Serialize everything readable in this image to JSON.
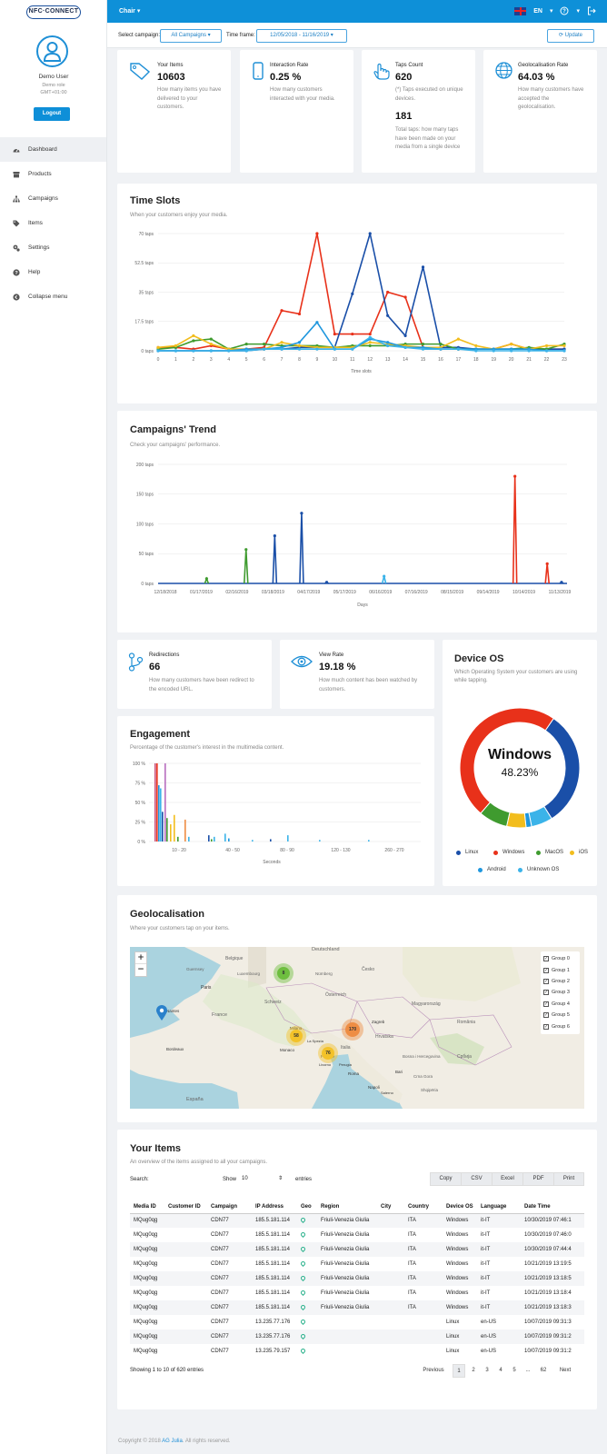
{
  "brand": {
    "logo_text": "NFC·CONNECT"
  },
  "user": {
    "name": "Demo User",
    "role": "Demo role",
    "timezone": "GMT+01:00",
    "logout_label": "Logout"
  },
  "nav": [
    {
      "label": "Dashboard",
      "icon": "dashboard-icon"
    },
    {
      "label": "Products",
      "icon": "box-icon"
    },
    {
      "label": "Campaigns",
      "icon": "sitemap-icon"
    },
    {
      "label": "Items",
      "icon": "tags-icon"
    },
    {
      "label": "Settings",
      "icon": "gears-icon"
    },
    {
      "label": "Help",
      "icon": "question-icon"
    },
    {
      "label": "Collapse menu",
      "icon": "chevron-left-icon"
    }
  ],
  "topbar": {
    "product": "Chair",
    "language": "EN"
  },
  "filters": {
    "campaign_label": "Select campaign:",
    "campaign_value": "All Campaigns",
    "timeframe_label": "Time frame:",
    "timeframe_value": "12/05/2018 - 11/16/2019",
    "update_label": "Update"
  },
  "stats": {
    "items": {
      "title": "Your Items",
      "value": "10603",
      "desc": "How many items you have delivered to your customers."
    },
    "interaction": {
      "title": "Interaction Rate",
      "value": "0.25 %",
      "desc": "How many customers interacted with your media."
    },
    "taps": {
      "title": "Taps Count",
      "value": "620",
      "desc": "(*) Taps executed on unique devices.",
      "value2": "181",
      "desc2": "Total taps: how many taps have been made on your media from a single device"
    },
    "geo": {
      "title": "Geolocalisation Rate",
      "value": "64.03 %",
      "desc": "How many customers have accepted the geolocalisation."
    },
    "redirections": {
      "title": "Redirections",
      "value": "66",
      "desc": "How many customers have been redirect to the encoded URL."
    },
    "viewrate": {
      "title": "View Rate",
      "value": "19.18 %",
      "desc": "How much content has been watched by customers."
    }
  },
  "sections": {
    "timeslots": {
      "title": "Time Slots",
      "subtitle": "When your customers enjoy your media."
    },
    "trend": {
      "title": "Campaigns' Trend",
      "subtitle": "Check your campaigns' performance."
    },
    "engagement": {
      "title": "Engagement",
      "subtitle": "Percentage of the customer's interest in the multimedia content."
    },
    "deviceos": {
      "title": "Device OS",
      "subtitle": "Which Operating System your customers are using while tapping.",
      "center_label": "Windows",
      "center_value": "48.23%"
    },
    "geo": {
      "title": "Geolocalisation",
      "subtitle": "Where your customers tap on your items."
    },
    "items": {
      "title": "Your Items",
      "subtitle": "An overview of the items assigned to all your campaigns."
    }
  },
  "colors": {
    "Linux": "#1a4fa8",
    "Windows": "#e8311a",
    "MacOS": "#3f9b2f",
    "iOS": "#f2bd1d",
    "Android": "#1f97de",
    "Unknown OS": "#3bb3e9",
    "accent": "#0e90d8"
  },
  "chart_data": [
    {
      "type": "line",
      "title": "Time Slots",
      "xlabel": "Time slots",
      "x": [
        0,
        1,
        2,
        3,
        4,
        5,
        6,
        7,
        8,
        9,
        10,
        11,
        12,
        13,
        14,
        15,
        16,
        17,
        18,
        19,
        20,
        21,
        22,
        23
      ],
      "ylim": [
        0,
        70
      ],
      "yticks": [
        "0 taps",
        "17.5 taps",
        "35 taps",
        "52.5 taps",
        "70 taps"
      ],
      "series": [
        {
          "color": "#e8311a",
          "values": [
            2,
            2,
            1,
            3,
            1,
            1,
            2,
            24,
            22,
            70,
            10,
            10,
            10,
            35,
            32,
            2,
            1,
            1,
            1,
            1,
            4,
            1,
            1,
            1
          ]
        },
        {
          "color": "#1a4fa8",
          "values": [
            0,
            0,
            0,
            0,
            0,
            0,
            1,
            1,
            2,
            2,
            2,
            34,
            70,
            21,
            9,
            50,
            2,
            2,
            1,
            1,
            1,
            1,
            1,
            1
          ]
        },
        {
          "color": "#3f9b2f",
          "values": [
            1,
            2,
            6,
            7,
            1,
            4,
            4,
            3,
            3,
            3,
            2,
            3,
            3,
            3,
            4,
            4,
            4,
            1,
            1,
            1,
            1,
            2,
            1,
            4
          ]
        },
        {
          "color": "#f2bd1d",
          "values": [
            2,
            3,
            9,
            4,
            1,
            1,
            1,
            5,
            3,
            2,
            2,
            2,
            5,
            4,
            3,
            2,
            2,
            7,
            3,
            1,
            4,
            1,
            3,
            3
          ]
        },
        {
          "color": "#1f97de",
          "values": [
            0,
            0,
            0,
            0,
            0,
            1,
            1,
            2,
            5,
            17,
            1,
            1,
            7,
            5,
            2,
            2,
            1,
            1,
            1,
            1,
            1,
            1,
            0,
            0
          ]
        },
        {
          "color": "#3bb3e9",
          "values": [
            0,
            0,
            0,
            0,
            0,
            0,
            1,
            1,
            1,
            1,
            1,
            1,
            8,
            3,
            2,
            1,
            1,
            1,
            0,
            0,
            0,
            0,
            0,
            0
          ]
        }
      ]
    },
    {
      "type": "line",
      "title": "Campaigns' Trend",
      "xlabel": "Days",
      "categories": [
        "12/18/2018",
        "01/17/2019",
        "02/16/2019",
        "03/18/2019",
        "04/17/2019",
        "05/17/2019",
        "06/16/2019",
        "07/16/2019",
        "08/15/2019",
        "09/14/2019",
        "10/14/2019",
        "11/13/2019"
      ],
      "ylim": [
        0,
        200
      ],
      "yticks": [
        "0 taps",
        "50 taps",
        "100 taps",
        "150 taps",
        "200 taps"
      ],
      "spikes": [
        {
          "date_index": 1.15,
          "value": 8,
          "color": "#3f9b2f"
        },
        {
          "date_index": 2.25,
          "value": 57,
          "color": "#3f9b2f"
        },
        {
          "date_index": 3.05,
          "value": 80,
          "color": "#1a4fa8"
        },
        {
          "date_index": 3.8,
          "value": 118,
          "color": "#1a4fa8"
        },
        {
          "date_index": 4.5,
          "value": 2,
          "color": "#1a4fa8"
        },
        {
          "date_index": 6.1,
          "value": 12,
          "color": "#3bb3e9"
        },
        {
          "date_index": 9.75,
          "value": 180,
          "color": "#e8311a"
        },
        {
          "date_index": 10.65,
          "value": 33,
          "color": "#e8311a"
        },
        {
          "date_index": 11.05,
          "value": 2,
          "color": "#1a4fa8"
        }
      ]
    },
    {
      "type": "bar",
      "title": "Engagement",
      "xlabel": "Seconds",
      "categories": [
        "10 - 20",
        "40 - 50",
        "80 - 90",
        "120 - 130",
        "260 - 270"
      ],
      "ylim": [
        0,
        100
      ],
      "yticks": [
        "0 %",
        "25 %",
        "50 %",
        "75 %",
        "100 %"
      ]
    },
    {
      "type": "pie",
      "title": "Device OS",
      "slices": [
        {
          "label": "Linux",
          "value": 31.5,
          "color": "#1a4fa8"
        },
        {
          "label": "Windows",
          "value": 48.23,
          "color": "#e8311a"
        },
        {
          "label": "MacOS",
          "value": 7.8,
          "color": "#3f9b2f"
        },
        {
          "label": "iOS",
          "value": 5.2,
          "color": "#f2bd1d"
        },
        {
          "label": "Android",
          "value": 1.5,
          "color": "#1f97de"
        },
        {
          "label": "Unknown OS",
          "value": 5.77,
          "color": "#3bb3e9"
        }
      ],
      "legend": [
        "Linux",
        "Windows",
        "MacOS",
        "iOS",
        "Android",
        "Unknown OS"
      ]
    }
  ],
  "map": {
    "zoom_in": "+",
    "zoom_out": "−",
    "groups": [
      "Group 0",
      "Group 1",
      "Group 2",
      "Group 3",
      "Group 4",
      "Group 5",
      "Group 6"
    ],
    "clusters": [
      {
        "label": "8",
        "color": "#6ebe3f"
      },
      {
        "label": "58",
        "color": "#f3c229"
      },
      {
        "label": "170",
        "color": "#ee8d44"
      },
      {
        "label": "76",
        "color": "#f3c229"
      }
    ],
    "places": [
      "Belgique",
      "Luxembourg",
      "Deutschland",
      "Nürnberg",
      "Česko",
      "Paris",
      "Nantes",
      "France",
      "Schweiz",
      "Österreich",
      "Magyarország",
      "Milano",
      "Zagreb",
      "Hrvatska",
      "România",
      "Monaco",
      "Roma",
      "Italia",
      "Firenze",
      "Bordeaux",
      "España",
      "Србија",
      "Bosna i Hercegovina",
      "Crna Gora",
      "Shqipëria",
      "Guernsey",
      "La Spezia",
      "Bari",
      "Livorno",
      "Napoli",
      "Salerno",
      "Perugia"
    ]
  },
  "table": {
    "search_label": "Search:",
    "show_label": "Show",
    "show_value": "10",
    "entries_label": "entries",
    "buttons": [
      "Copy",
      "CSV",
      "Excel",
      "PDF",
      "Print"
    ],
    "columns": [
      "Media ID",
      "Customer ID",
      "Campaign",
      "IP Address",
      "Geo",
      "Region",
      "City",
      "Country",
      "Device OS",
      "Language",
      "Date Time"
    ],
    "rows": [
      [
        "MQug0qg",
        "",
        "CDN77",
        "185.5.181.114",
        "",
        "Friuli-Venezia Giulia",
        "",
        "ITA",
        "Windows",
        "it-IT",
        "10/30/2019 07:46:1"
      ],
      [
        "MQug0qg",
        "",
        "CDN77",
        "185.5.181.114",
        "",
        "Friuli-Venezia Giulia",
        "",
        "ITA",
        "Windows",
        "it-IT",
        "10/30/2019 07:46:0"
      ],
      [
        "MQug0qg",
        "",
        "CDN77",
        "185.5.181.114",
        "",
        "Friuli-Venezia Giulia",
        "",
        "ITA",
        "Windows",
        "it-IT",
        "10/30/2019 07:44:4"
      ],
      [
        "MQug0qg",
        "",
        "CDN77",
        "185.5.181.114",
        "",
        "Friuli-Venezia Giulia",
        "",
        "ITA",
        "Windows",
        "it-IT",
        "10/21/2019 13:19:5"
      ],
      [
        "MQug0qg",
        "",
        "CDN77",
        "185.5.181.114",
        "",
        "Friuli-Venezia Giulia",
        "",
        "ITA",
        "Windows",
        "it-IT",
        "10/21/2019 13:18:5"
      ],
      [
        "MQug0qg",
        "",
        "CDN77",
        "185.5.181.114",
        "",
        "Friuli-Venezia Giulia",
        "",
        "ITA",
        "Windows",
        "it-IT",
        "10/21/2019 13:18:4"
      ],
      [
        "MQug0qg",
        "",
        "CDN77",
        "185.5.181.114",
        "",
        "Friuli-Venezia Giulia",
        "",
        "ITA",
        "Windows",
        "it-IT",
        "10/21/2019 13:18:3"
      ],
      [
        "MQug0qg",
        "",
        "CDN77",
        "13.235.77.176",
        "",
        "",
        "",
        "",
        "Linux",
        "en-US",
        "10/07/2019 09:31:3"
      ],
      [
        "MQug0qg",
        "",
        "CDN77",
        "13.235.77.176",
        "",
        "",
        "",
        "",
        "Linux",
        "en-US",
        "10/07/2019 09:31:2"
      ],
      [
        "MQug0qg",
        "",
        "CDN77",
        "13.235.79.157",
        "",
        "",
        "",
        "",
        "Linux",
        "en-US",
        "10/07/2019 09:31:2"
      ]
    ],
    "info": "Showing 1 to 10 of 620 entries",
    "pagination": [
      "Previous",
      "1",
      "2",
      "3",
      "4",
      "5",
      "...",
      "62",
      "Next"
    ]
  },
  "footer": {
    "text": "Copyright © 2018",
    "company": "AG Julia",
    "rights": ". All rights reserved."
  }
}
